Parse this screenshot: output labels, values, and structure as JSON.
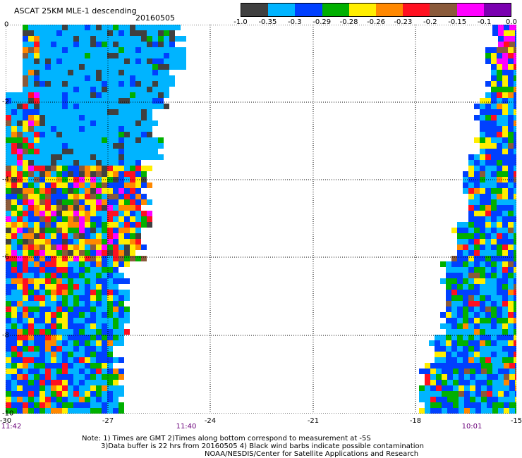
{
  "header": {
    "title": "ASCAT 25KM MLE-1 descending",
    "date": "20160505"
  },
  "colorbar": {
    "colors": [
      "#404040",
      "#00b4ff",
      "#0040ff",
      "#00b000",
      "#ffee00",
      "#ff8800",
      "#ff1020",
      "#8a5a3a",
      "#ff00ff",
      "#7a00b0"
    ],
    "labels": [
      "-1.0",
      "-0.35",
      "-0.3",
      "-0.29",
      "-0.28",
      "-0.26",
      "-0.23",
      "-0.2",
      "-0.15",
      "-0.1",
      "0.0"
    ]
  },
  "axes": {
    "y_ticks": [
      "0",
      "-2",
      "-4",
      "-6",
      "-8",
      "-10"
    ],
    "x_ticks": [
      "-30",
      "-27",
      "-24",
      "-21",
      "-18",
      "-15"
    ],
    "time_labels": [
      "11:42",
      "11:40",
      "10:01"
    ]
  },
  "notes": {
    "line1": "Note: 1) Times are GMT 2)Times along bottom correspond to measurement at -5S",
    "line2": "3)Data buffer is 22 hrs from 20160505 4) Black wind barbs indicate possible contamination",
    "line3": "NOAA/NESDIS/Center for Satellite Applications and Research"
  }
}
